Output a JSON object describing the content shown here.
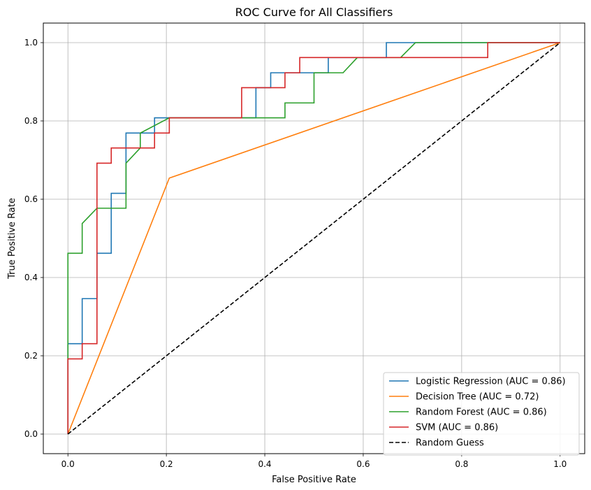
{
  "chart_data": {
    "type": "line",
    "title": "ROC Curve for All Classifiers",
    "xlabel": "False Positive Rate",
    "ylabel": "True Positive Rate",
    "xlim": [
      -0.05,
      1.05
    ],
    "ylim": [
      -0.05,
      1.05
    ],
    "xticks": [
      0.0,
      0.2,
      0.4,
      0.6,
      0.8,
      1.0
    ],
    "yticks": [
      0.0,
      0.2,
      0.4,
      0.6,
      0.8,
      1.0
    ],
    "xtick_labels": [
      "0.0",
      "0.2",
      "0.4",
      "0.6",
      "0.8",
      "1.0"
    ],
    "ytick_labels": [
      "0.0",
      "0.2",
      "0.4",
      "0.6",
      "0.8",
      "1.0"
    ],
    "grid": true,
    "legend_position": "lower-right",
    "series": [
      {
        "name": "Logistic Regression (AUC = 0.86)",
        "color": "#1f77b4",
        "style": "solid",
        "x": [
          0,
          0,
          0,
          0.029,
          0.029,
          0.059,
          0.059,
          0.088,
          0.088,
          0.118,
          0.118,
          0.176,
          0.176,
          0.382,
          0.382,
          0.412,
          0.412,
          0.529,
          0.529,
          0.647,
          0.647,
          1.0
        ],
        "y": [
          0,
          0.038,
          0.231,
          0.231,
          0.346,
          0.346,
          0.462,
          0.462,
          0.615,
          0.615,
          0.769,
          0.769,
          0.808,
          0.808,
          0.885,
          0.885,
          0.923,
          0.923,
          0.962,
          0.962,
          1.0,
          1.0
        ]
      },
      {
        "name": "Decision Tree (AUC = 0.72)",
        "color": "#ff7f0e",
        "style": "solid",
        "x": [
          0,
          0.206,
          1.0
        ],
        "y": [
          0,
          0.654,
          1.0
        ]
      },
      {
        "name": "Random Forest (AUC = 0.86)",
        "color": "#2ca02c",
        "style": "solid",
        "x": [
          0,
          0,
          0.029,
          0.029,
          0.059,
          0.118,
          0.118,
          0.147,
          0.147,
          0.206,
          0.441,
          0.441,
          0.5,
          0.5,
          0.559,
          0.588,
          0.676,
          0.706,
          1.0
        ],
        "y": [
          0,
          0.462,
          0.462,
          0.538,
          0.577,
          0.577,
          0.692,
          0.731,
          0.769,
          0.808,
          0.808,
          0.846,
          0.846,
          0.923,
          0.923,
          0.962,
          0.962,
          1.0,
          1.0
        ]
      },
      {
        "name": "SVM (AUC = 0.86)",
        "color": "#d62728",
        "style": "solid",
        "x": [
          0,
          0,
          0.029,
          0.029,
          0.059,
          0.059,
          0.088,
          0.088,
          0.176,
          0.176,
          0.206,
          0.206,
          0.353,
          0.353,
          0.441,
          0.441,
          0.471,
          0.471,
          0.853,
          0.853,
          1.0
        ],
        "y": [
          0,
          0.192,
          0.192,
          0.231,
          0.231,
          0.692,
          0.692,
          0.731,
          0.731,
          0.769,
          0.769,
          0.808,
          0.808,
          0.885,
          0.885,
          0.923,
          0.923,
          0.962,
          0.962,
          1.0,
          1.0
        ]
      },
      {
        "name": "Random Guess",
        "color": "#000000",
        "style": "dashed",
        "x": [
          0,
          1
        ],
        "y": [
          0,
          1
        ]
      }
    ]
  }
}
